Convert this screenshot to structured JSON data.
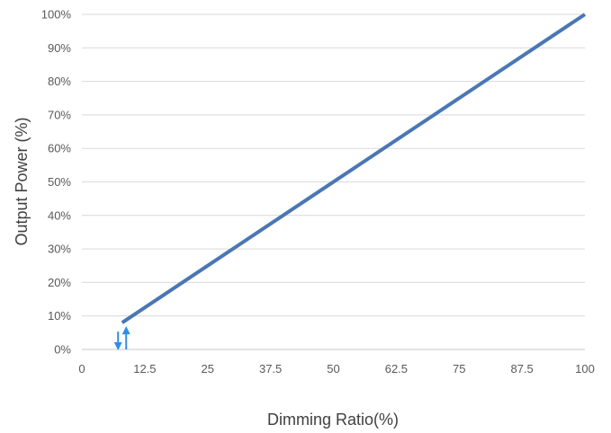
{
  "chart_data": {
    "type": "line",
    "title": "",
    "xlabel": "Dimming Ratio(%)",
    "ylabel": "Output Power (%)",
    "xlim": [
      0,
      100
    ],
    "ylim": [
      0,
      100
    ],
    "x_ticks": [
      0,
      12.5,
      25,
      37.5,
      50,
      62.5,
      75,
      87.5,
      100
    ],
    "x_tick_labels": [
      "0",
      "12.5",
      "25",
      "37.5",
      "50",
      "62.5",
      "75",
      "87.5",
      "100"
    ],
    "y_ticks": [
      0,
      10,
      20,
      30,
      40,
      50,
      60,
      70,
      80,
      90,
      100
    ],
    "y_tick_labels": [
      "0%",
      "10%",
      "20%",
      "30%",
      "40%",
      "50%",
      "60%",
      "70%",
      "80%",
      "90%",
      "100%"
    ],
    "grid": "horizontal",
    "legend": "none",
    "series": [
      {
        "x": [
          8,
          100
        ],
        "y": [
          8,
          100
        ],
        "color": "#4a77b4"
      }
    ],
    "annotations": [
      {
        "type": "double-arrow",
        "x": 8,
        "y_range": [
          0,
          8
        ],
        "color": "#2e8fe6"
      }
    ]
  }
}
